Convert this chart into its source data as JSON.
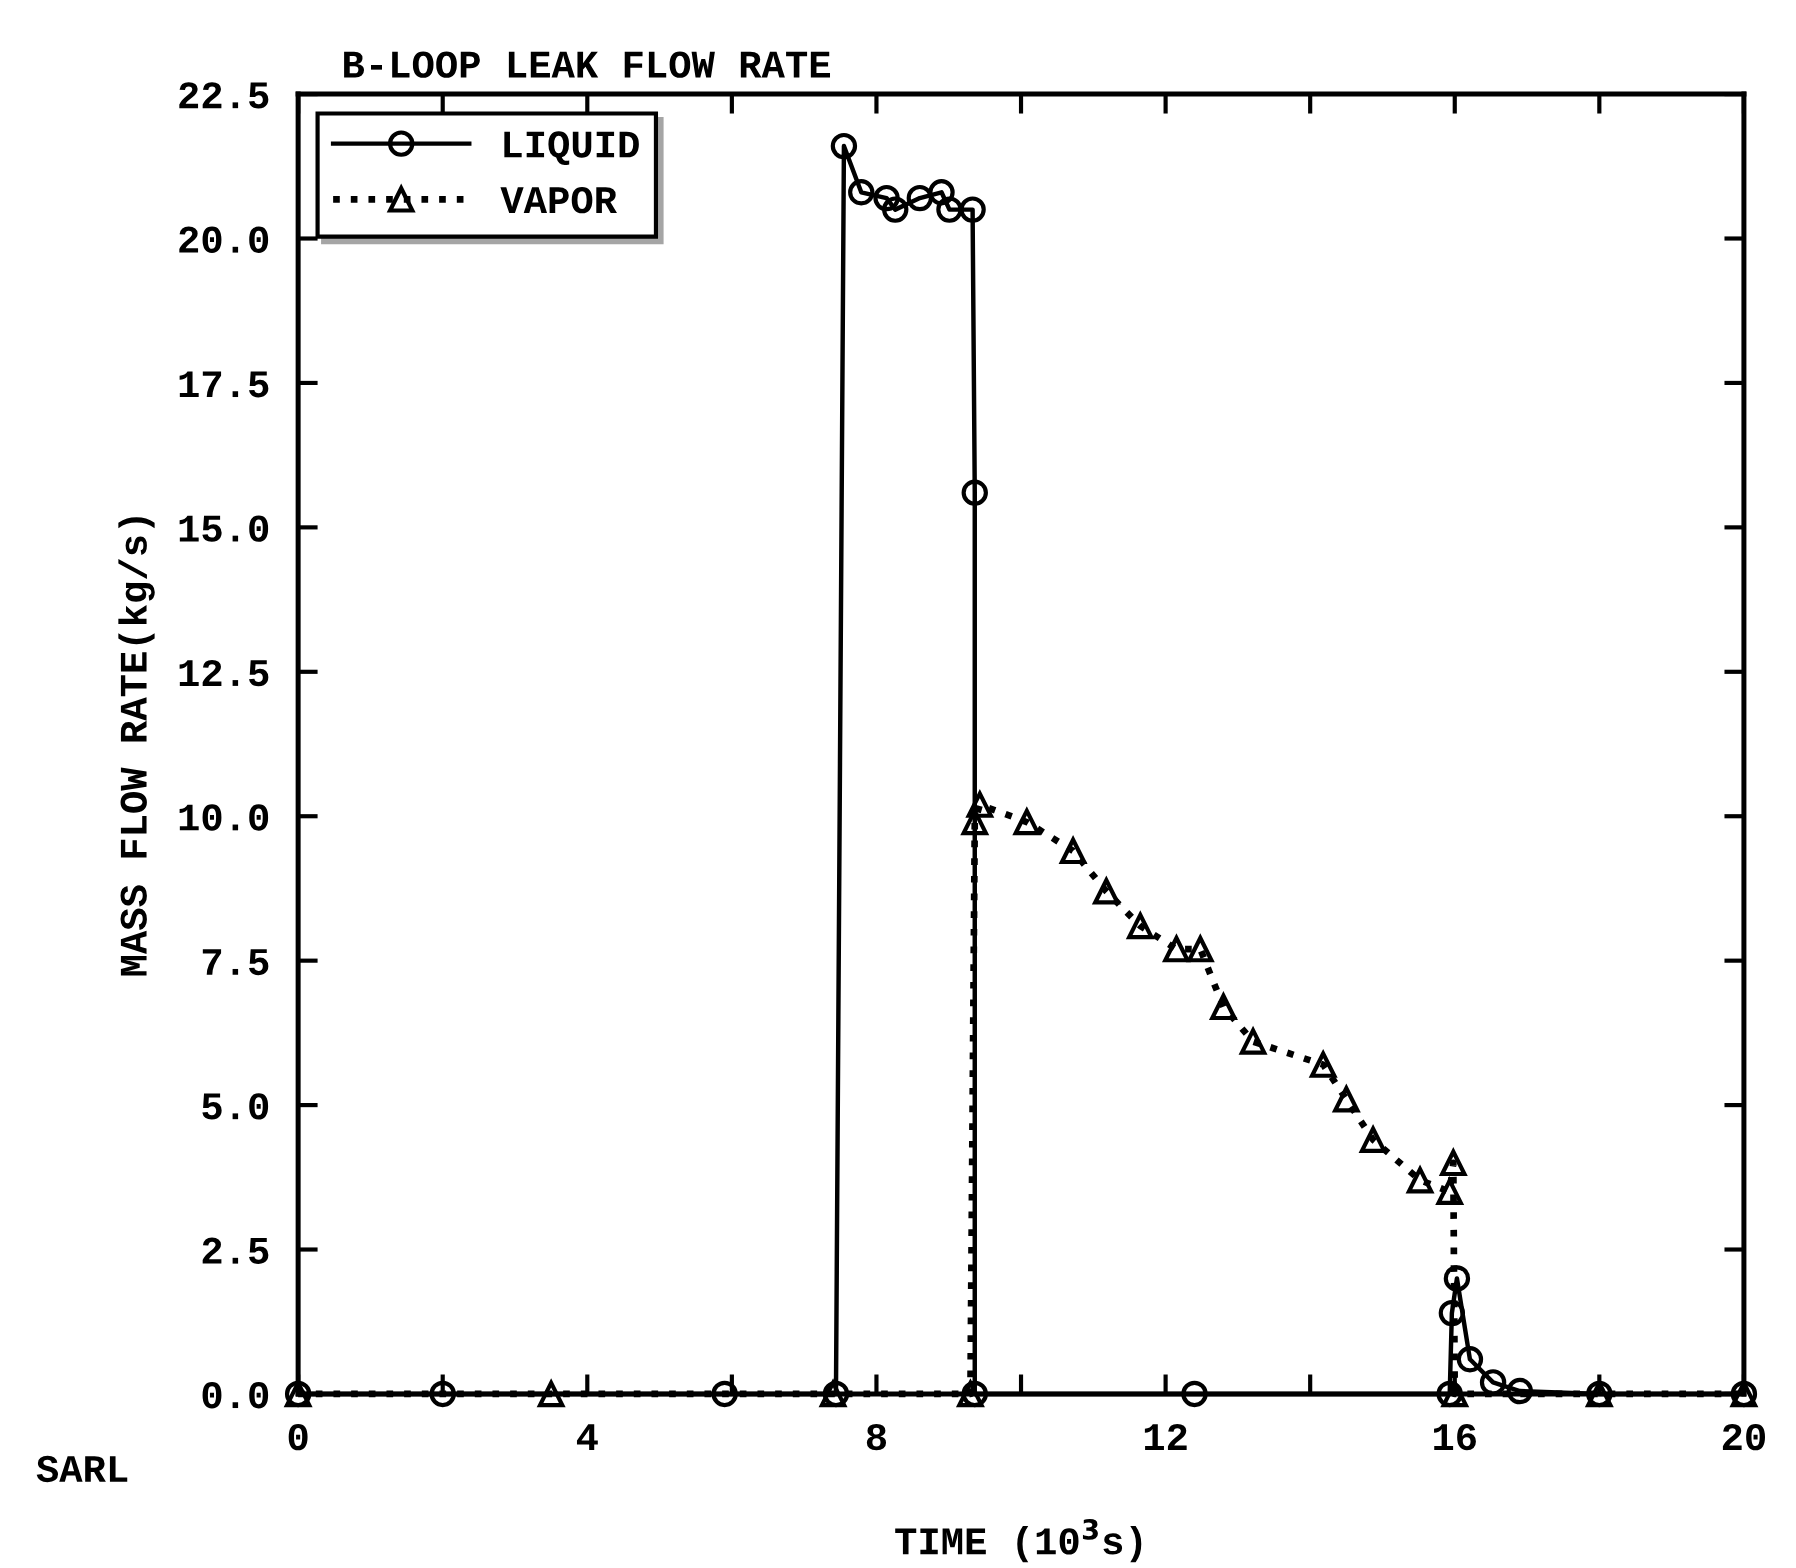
{
  "chart_data": {
    "type": "line",
    "title": "B-LOOP LEAK FLOW RATE",
    "xlabel": "TIME (10$^{3}$s)",
    "ylabel": "MASS FLOW RATE(kg/s)",
    "annotations": [
      "SARL"
    ],
    "series": [
      {
        "name": "LIQUID",
        "color": "#000000",
        "marker": "circle",
        "line_style": "solid",
        "x": [
          0,
          2.0,
          5.9,
          7.44,
          7.55,
          7.79,
          8.14,
          8.26,
          8.6,
          8.9,
          9.01,
          9.33,
          9.36,
          9.36,
          12.4,
          15.93,
          15.96,
          16.03,
          16.21,
          16.53,
          16.9,
          18.0,
          20
        ],
        "values": [
          0,
          0,
          0,
          0,
          21.6,
          20.8,
          20.7,
          20.5,
          20.7,
          20.8,
          20.5,
          20.5,
          15.6,
          0,
          0,
          0,
          1.4,
          2.0,
          0.6,
          0.2,
          0.05,
          0,
          0
        ]
      },
      {
        "name": "VAPOR",
        "color": "#000000",
        "marker": "triangle",
        "line_style": "dotted",
        "x": [
          0,
          3.5,
          7.4,
          9.3,
          9.36,
          9.43,
          10.08,
          10.72,
          11.18,
          11.65,
          12.15,
          12.48,
          12.8,
          13.21,
          14.18,
          14.5,
          14.87,
          15.52,
          15.93,
          15.98,
          16.0,
          18.0,
          20
        ],
        "values": [
          0,
          0,
          0,
          0,
          9.9,
          10.2,
          9.9,
          9.4,
          8.7,
          8.1,
          7.7,
          7.7,
          6.7,
          6.1,
          5.7,
          5.1,
          4.4,
          3.7,
          3.5,
          4.0,
          0,
          0,
          0
        ]
      }
    ],
    "xlim": [
      0,
      20
    ],
    "ylim": [
      0,
      22.5
    ],
    "xticks": [
      0,
      {
        "value": 2,
        "label": null
      },
      4,
      {
        "value": 6,
        "label": null
      },
      8,
      {
        "value": 10,
        "label": null
      },
      12,
      {
        "value": 14,
        "label": null
      },
      16,
      {
        "value": 18,
        "label": null
      },
      20
    ],
    "yticks": [
      {
        "value": 0,
        "label": "0.0"
      },
      2.5,
      {
        "value": 5,
        "label": "5.0"
      },
      7.5,
      {
        "value": 10,
        "label": "10.0"
      },
      12.5,
      {
        "value": 15,
        "label": "15.0"
      },
      17.5,
      {
        "value": 20,
        "label": "20.0"
      },
      22.5
    ],
    "grid": false,
    "legend": "top left"
  }
}
